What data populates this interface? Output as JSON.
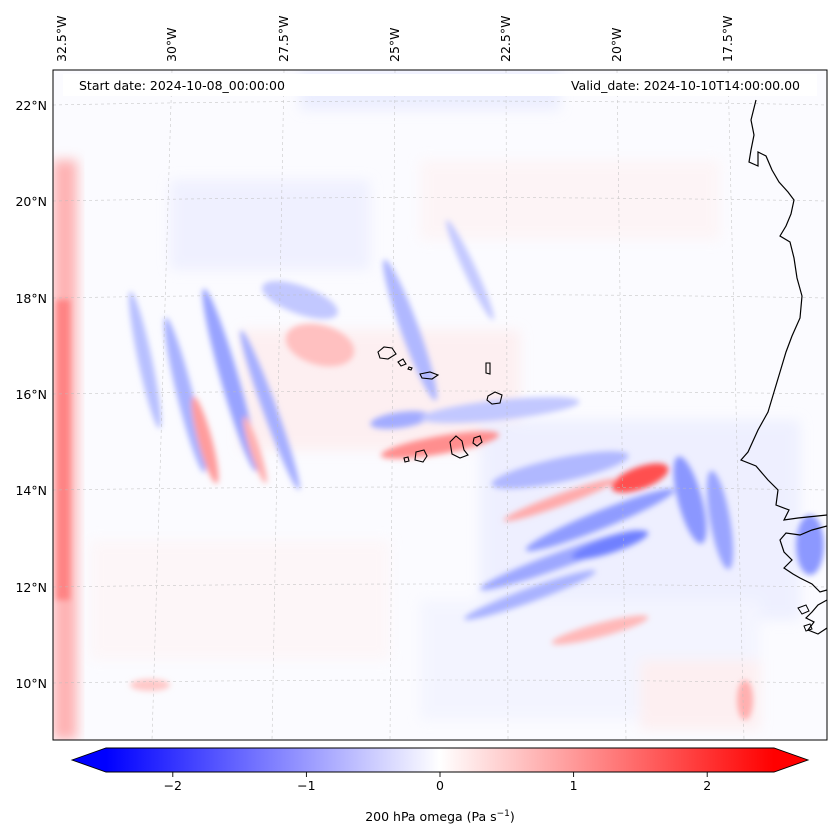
{
  "map": {
    "start_label": "Start date: 2024-10-08_00:00:00",
    "valid_label": "Valid_date: 2024-10-10T14:00:00.00",
    "lon_labels": [
      "32.5°W",
      "30°W",
      "27.5°W",
      "25°W",
      "22.5°W",
      "20°W",
      "17.5°W"
    ],
    "lat_labels": [
      "22°N",
      "20°N",
      "18°N",
      "16°N",
      "14°N",
      "12°N",
      "10°N"
    ],
    "colors": {
      "negative": "#0000ff",
      "positive": "#ff0000",
      "neutral": "#ffffff",
      "coastline": "#000000",
      "gridline": "#bbbbbb"
    }
  },
  "colorbar": {
    "ticks": [
      "−2",
      "−1",
      "0",
      "1",
      "2"
    ],
    "tick_values": [
      -2,
      -1,
      0,
      1,
      2
    ],
    "range": [
      -2.5,
      2.5
    ],
    "label": "200 hPa omega (Pa s",
    "label_sup": "−1",
    "label_end": ")"
  }
}
